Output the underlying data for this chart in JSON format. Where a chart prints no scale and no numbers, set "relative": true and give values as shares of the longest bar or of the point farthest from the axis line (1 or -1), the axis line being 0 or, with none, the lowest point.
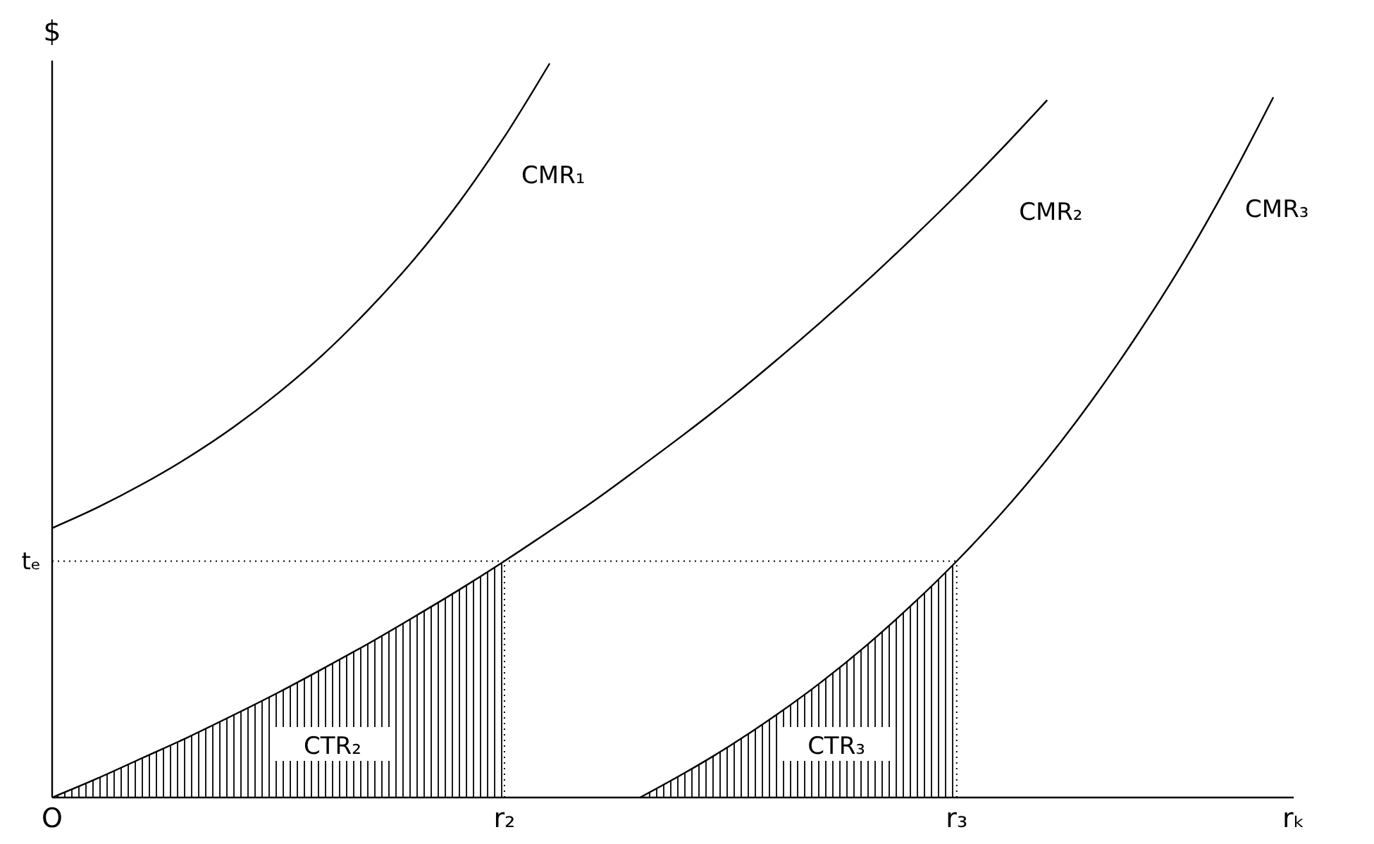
{
  "chart_data": {
    "type": "line",
    "relative": true,
    "ylabel": "$",
    "xlabel": "rₖ",
    "legend": false,
    "grid": false,
    "categories": [
      "O",
      null,
      null,
      null,
      null,
      null,
      null,
      null,
      null,
      null,
      "r₂",
      null,
      null,
      null,
      null,
      null,
      null,
      null,
      null,
      null,
      "r₃",
      null,
      null,
      null,
      null,
      null,
      null,
      null
    ],
    "ref_lines": [
      {
        "axis": "y",
        "value": 0.322,
        "label": "tₑ",
        "line_style": "dotted"
      },
      {
        "axis": "x",
        "value": "r₂",
        "line_style": "dotted"
      },
      {
        "axis": "x",
        "value": "r₃",
        "line_style": "dotted"
      }
    ],
    "series": [
      {
        "name": "CMR₁",
        "color": "#000000",
        "values": [
          0.367,
          0.395,
          0.427,
          0.463,
          0.504,
          0.551,
          0.604,
          0.665,
          0.733,
          0.811,
          0.9,
          1.0,
          null,
          null,
          null,
          null,
          null,
          null,
          null,
          null,
          null,
          null,
          null,
          null,
          null,
          null,
          null,
          null
        ]
      },
      {
        "name": "CMR₂",
        "color": "#000000",
        "values": [
          0,
          0.026,
          0.054,
          0.082,
          0.112,
          0.143,
          0.176,
          0.21,
          0.246,
          0.283,
          0.322,
          0.363,
          0.405,
          0.45,
          0.496,
          0.544,
          0.595,
          0.648,
          0.703,
          0.761,
          0.821,
          0.884,
          0.95,
          null,
          null,
          null,
          null,
          null
        ]
      },
      {
        "name": "CMR₃",
        "color": "#000000",
        "values": [
          null,
          null,
          null,
          null,
          null,
          null,
          null,
          null,
          null,
          null,
          null,
          null,
          null,
          0,
          0.034,
          0.071,
          0.112,
          0.157,
          0.207,
          0.262,
          0.322,
          0.388,
          0.461,
          0.542,
          0.631,
          0.728,
          0.836,
          0.954
        ]
      },
      {
        "name": "CTR₂",
        "type": "area",
        "color": "#000000",
        "values": [
          0,
          0.026,
          0.054,
          0.082,
          0.112,
          0.143,
          0.176,
          0.21,
          0.246,
          0.283,
          0.322,
          null,
          null,
          null,
          null,
          null,
          null,
          null,
          null,
          null,
          null,
          null,
          null,
          null,
          null,
          null,
          null,
          null
        ]
      },
      {
        "name": "CTR₃",
        "type": "area",
        "color": "#000000",
        "values": [
          null,
          null,
          null,
          null,
          null,
          null,
          null,
          null,
          null,
          null,
          null,
          null,
          null,
          0,
          0.034,
          0.071,
          0.112,
          0.157,
          0.207,
          0.262,
          0.322,
          null,
          null,
          null,
          null,
          null,
          null,
          null
        ]
      }
    ]
  }
}
